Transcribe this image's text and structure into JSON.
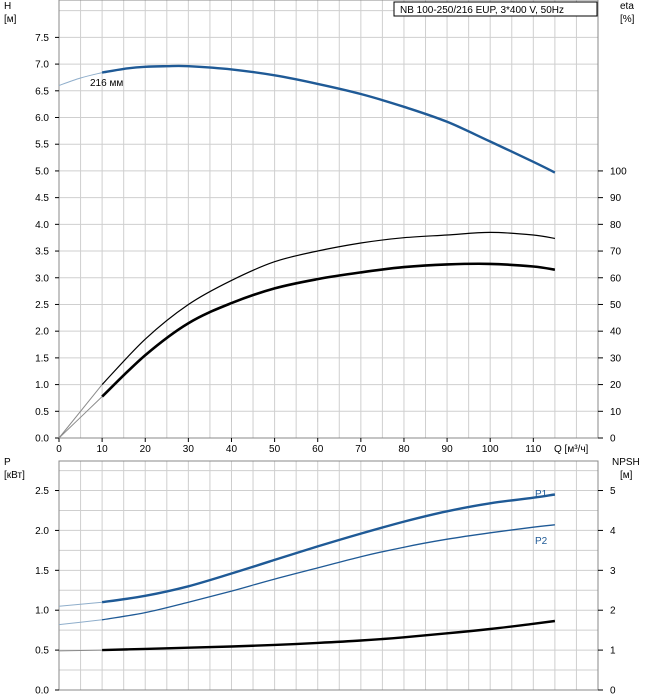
{
  "header_box": "NB 100-250/216 EUP, 3*400 V, 50Hz",
  "top": {
    "left_axis": {
      "name": "H",
      "unit": "[м]",
      "ticks": [
        "0.0",
        "0.5",
        "1.0",
        "1.5",
        "2.0",
        "2.5",
        "3.0",
        "3.5",
        "4.0",
        "4.5",
        "5.0",
        "5.5",
        "6.0",
        "6.5",
        "7.0",
        "7.5"
      ],
      "range": [
        0,
        8.2
      ]
    },
    "right_axis": {
      "name": "eta",
      "unit": "[%]",
      "ticks": [
        "0",
        "10",
        "20",
        "30",
        "40",
        "50",
        "60",
        "70",
        "80",
        "90",
        "100"
      ],
      "range": [
        0,
        164
      ]
    },
    "x_axis": {
      "label": "Q [м³/ч]",
      "ticks": [
        "0",
        "10",
        "20",
        "30",
        "40",
        "50",
        "60",
        "70",
        "80",
        "90",
        "100",
        "110"
      ],
      "range": [
        0,
        125
      ]
    },
    "curve_label": "216 мм"
  },
  "bottom": {
    "left_axis": {
      "name": "P",
      "unit": "[кВт]",
      "ticks": [
        "0.0",
        "0.5",
        "1.0",
        "1.5",
        "2.0",
        "2.5"
      ],
      "range": [
        0,
        2.87
      ]
    },
    "right_axis": {
      "name": "NPSH",
      "unit": "[м]",
      "ticks": [
        "0",
        "1",
        "2",
        "3",
        "4",
        "5"
      ],
      "range": [
        0,
        5.74
      ]
    },
    "series_labels": {
      "p1": "P1",
      "p2": "P2"
    }
  },
  "colors": {
    "blue": "#1f5a96",
    "light_blue": "#8faecb",
    "black": "#000000",
    "grid": "#cfcfcf"
  },
  "chart_data": [
    {
      "type": "line",
      "xlabel": "Q [м³/ч]",
      "ylabel": "H [м]",
      "y2label": "eta [%]",
      "xlim": [
        0,
        125
      ],
      "ylim": [
        0,
        8.2
      ],
      "y2lim": [
        0,
        164
      ],
      "grid": true,
      "series": [
        {
          "name": "216 мм",
          "axis": "H",
          "x": [
            0,
            5,
            10,
            15,
            20,
            25,
            30,
            40,
            50,
            60,
            70,
            80,
            90,
            100,
            110,
            115
          ],
          "values": [
            6.6,
            6.74,
            6.84,
            6.91,
            6.95,
            6.96,
            6.96,
            6.9,
            6.79,
            6.63,
            6.44,
            6.2,
            5.92,
            5.55,
            5.17,
            4.97
          ]
        },
        {
          "axis": "eta",
          "x": [
            0,
            10,
            20,
            30,
            40,
            50,
            60,
            70,
            80,
            90,
            100,
            110,
            115
          ],
          "values": [
            0,
            20,
            37,
            50,
            59,
            66,
            70,
            73,
            75,
            76,
            77,
            76,
            74.7
          ]
        },
        {
          "axis": "eta",
          "x": [
            0,
            10,
            20,
            30,
            40,
            50,
            60,
            70,
            80,
            90,
            100,
            110,
            115
          ],
          "values": [
            0,
            15.5,
            31,
            43,
            50.5,
            56,
            59.5,
            62,
            64,
            65,
            65.2,
            64.2,
            63
          ]
        }
      ]
    },
    {
      "type": "line",
      "xlabel": "Q [м³/ч]",
      "ylabel": "P [кВт]",
      "y2label": "NPSH [м]",
      "xlim": [
        0,
        125
      ],
      "ylim": [
        0,
        2.87
      ],
      "y2lim": [
        0,
        5.74
      ],
      "grid": true,
      "series": [
        {
          "name": "P1",
          "axis": "P",
          "x": [
            0,
            10,
            20,
            30,
            40,
            50,
            60,
            70,
            80,
            90,
            100,
            110,
            115
          ],
          "values": [
            1.05,
            1.1,
            1.18,
            1.3,
            1.46,
            1.63,
            1.8,
            1.96,
            2.11,
            2.24,
            2.34,
            2.41,
            2.45
          ]
        },
        {
          "name": "P2",
          "axis": "P",
          "x": [
            0,
            10,
            20,
            30,
            40,
            50,
            60,
            70,
            80,
            90,
            100,
            110,
            115
          ],
          "values": [
            0.82,
            0.88,
            0.97,
            1.1,
            1.24,
            1.39,
            1.53,
            1.67,
            1.79,
            1.89,
            1.97,
            2.04,
            2.07
          ]
        },
        {
          "axis": "NPSH",
          "x": [
            0,
            10,
            20,
            30,
            40,
            50,
            60,
            70,
            80,
            90,
            100,
            110,
            115
          ],
          "values": [
            0.98,
            1.0,
            1.03,
            1.06,
            1.09,
            1.13,
            1.18,
            1.24,
            1.32,
            1.42,
            1.53,
            1.66,
            1.73
          ]
        }
      ]
    }
  ]
}
